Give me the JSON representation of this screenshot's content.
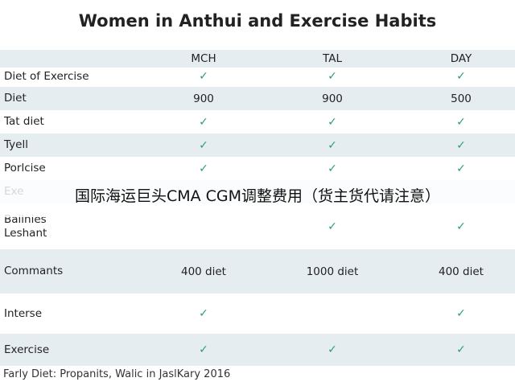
{
  "title": "Women in Anthui and Exercise Habits",
  "table": {
    "columns": [
      "MCH",
      "TAL",
      "DAY"
    ],
    "rows": [
      {
        "label": "Diet of Exercise",
        "cells": [
          "✓",
          "✓",
          "✓"
        ]
      },
      {
        "label": "Diet",
        "cells": [
          "900",
          "900",
          "500"
        ]
      },
      {
        "label": "Tat diet",
        "cells": [
          "✓",
          "✓",
          "✓"
        ]
      },
      {
        "label": "Tyell",
        "cells": [
          "✓",
          "✓",
          "✓"
        ]
      },
      {
        "label": "Porlcise",
        "cells": [
          "✓",
          "✓",
          "✓"
        ]
      },
      {
        "label": "Exe",
        "cells": [
          null,
          null,
          null
        ]
      },
      {
        "label": "Bailnies Leshant",
        "cells": [
          null,
          "✓",
          "✓"
        ]
      },
      {
        "label": "Commants",
        "cells": [
          "400 diet",
          "1000 diet",
          "400 diet"
        ]
      },
      {
        "label": "Interse",
        "cells": [
          "✓",
          null,
          "✓"
        ]
      },
      {
        "label": "Exercise",
        "cells": [
          "✓",
          "✓",
          "✓"
        ]
      }
    ]
  },
  "footer": "Farly Diet: Propanits, Walic in JaslKary 2016",
  "banner": "国际海运巨头CMA CGM调整费用（货主货代请注意）"
}
